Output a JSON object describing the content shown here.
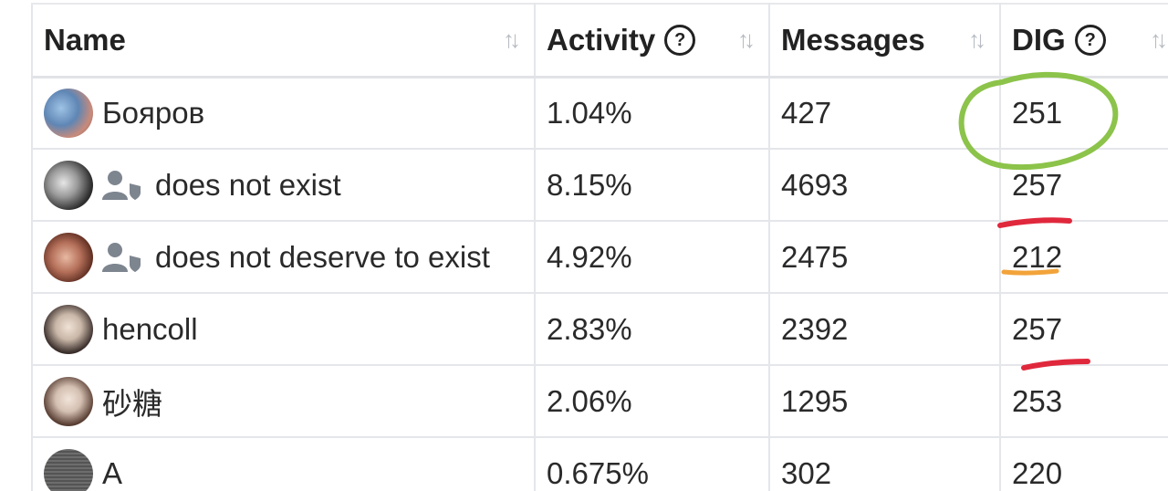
{
  "table": {
    "columns": [
      {
        "label": "Name",
        "help": false
      },
      {
        "label": "Activity",
        "help": true
      },
      {
        "label": "Messages",
        "help": false
      },
      {
        "label": "DIG",
        "help": true
      }
    ],
    "rows": [
      {
        "name": "Бояров",
        "role_icon": false,
        "activity": "1.04%",
        "messages": "427",
        "dig": "251"
      },
      {
        "name": "does not exist",
        "role_icon": true,
        "activity": "8.15%",
        "messages": "4693",
        "dig": "257"
      },
      {
        "name": "does not deserve to exist",
        "role_icon": true,
        "activity": "4.92%",
        "messages": "2475",
        "dig": "212"
      },
      {
        "name": "hencoll",
        "role_icon": false,
        "activity": "2.83%",
        "messages": "2392",
        "dig": "257"
      },
      {
        "name": "砂糖",
        "role_icon": false,
        "activity": "2.06%",
        "messages": "1295",
        "dig": "253"
      },
      {
        "name": "A",
        "role_icon": false,
        "activity": "0.675%",
        "messages": "302",
        "dig": "220"
      }
    ]
  },
  "icons": {
    "help": "question-circle-icon",
    "sort": "sort-arrows-icon",
    "role": "user-shield-icon"
  },
  "annotation_colors": {
    "circle": "#8cc34a",
    "underline_red": "#e0283c",
    "underline_orange": "#f2a33a"
  }
}
